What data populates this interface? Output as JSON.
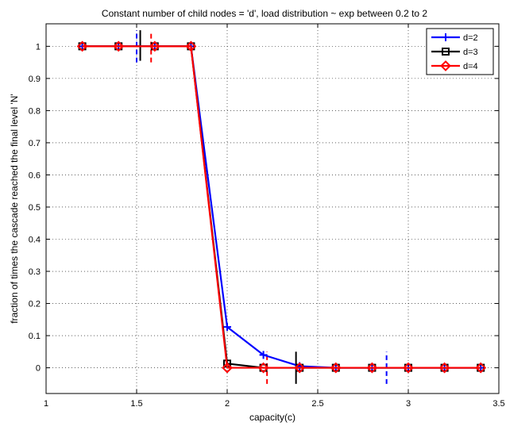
{
  "chart_data": {
    "type": "line",
    "title": "Constant number of child nodes = 'd', load distribution ~ exp between 0.2 to 2",
    "xlabel": "capacity(c)",
    "ylabel": "fraction of times the cascade reached the final level 'N'",
    "xlim": [
      1,
      3.5
    ],
    "ylim": [
      -0.08,
      1.07
    ],
    "x_ticks": [
      "1",
      "1.5",
      "2",
      "2.5",
      "3",
      "3.5"
    ],
    "x_tick_values": [
      1,
      1.5,
      2,
      2.5,
      3,
      3.5
    ],
    "y_ticks": [
      "0",
      "0.1",
      "0.2",
      "0.3",
      "0.4",
      "0.5",
      "0.6",
      "0.7",
      "0.8",
      "0.9",
      "1"
    ],
    "y_tick_values": [
      0,
      0.1,
      0.2,
      0.3,
      0.4,
      0.5,
      0.6,
      0.7,
      0.8,
      0.9,
      1
    ],
    "grid": true,
    "legend_position": "top-right",
    "series": [
      {
        "name": "d=2",
        "color": "#0000ff",
        "marker": "plus",
        "x": [
          1.2,
          1.4,
          1.6,
          1.8,
          2.0,
          2.2,
          2.4,
          2.6,
          2.8,
          3.0,
          3.2,
          3.4
        ],
        "y": [
          1,
          1,
          1,
          1,
          0.127,
          0.04,
          0.005,
          0,
          0,
          0,
          0,
          0
        ]
      },
      {
        "name": "d=3",
        "color": "#000000",
        "marker": "square",
        "x": [
          1.2,
          1.4,
          1.6,
          1.8,
          2.0,
          2.2,
          2.4,
          2.6,
          2.8,
          3.0,
          3.2,
          3.4
        ],
        "y": [
          1,
          1,
          1,
          1,
          0.013,
          0,
          0,
          0,
          0,
          0,
          0,
          0
        ]
      },
      {
        "name": "d=4",
        "color": "#ff0000",
        "marker": "diamond",
        "x": [
          1.2,
          1.4,
          1.6,
          1.8,
          2.0,
          2.2,
          2.4,
          2.6,
          2.8,
          3.0,
          3.2,
          3.4
        ],
        "y": [
          1,
          1,
          1,
          1,
          0,
          0,
          0,
          0,
          0,
          0,
          0,
          0
        ]
      }
    ],
    "threshold_marks": [
      {
        "x": 1.5,
        "y_from": 0.95,
        "y_to": 1.05,
        "color": "#0000ff",
        "style": "dashed"
      },
      {
        "x": 1.52,
        "y_from": 0.955,
        "y_to": 1.05,
        "color": "#000000",
        "style": "solid"
      },
      {
        "x": 1.58,
        "y_from": 0.95,
        "y_to": 1.045,
        "color": "#ff0000",
        "style": "dashed"
      },
      {
        "x": 2.22,
        "y_from": -0.05,
        "y_to": 0.05,
        "color": "#ff0000",
        "style": "dashed"
      },
      {
        "x": 2.38,
        "y_from": -0.05,
        "y_to": 0.05,
        "color": "#000000",
        "style": "solid"
      },
      {
        "x": 2.88,
        "y_from": -0.05,
        "y_to": 0.05,
        "color": "#0000ff",
        "style": "dashed"
      }
    ]
  }
}
